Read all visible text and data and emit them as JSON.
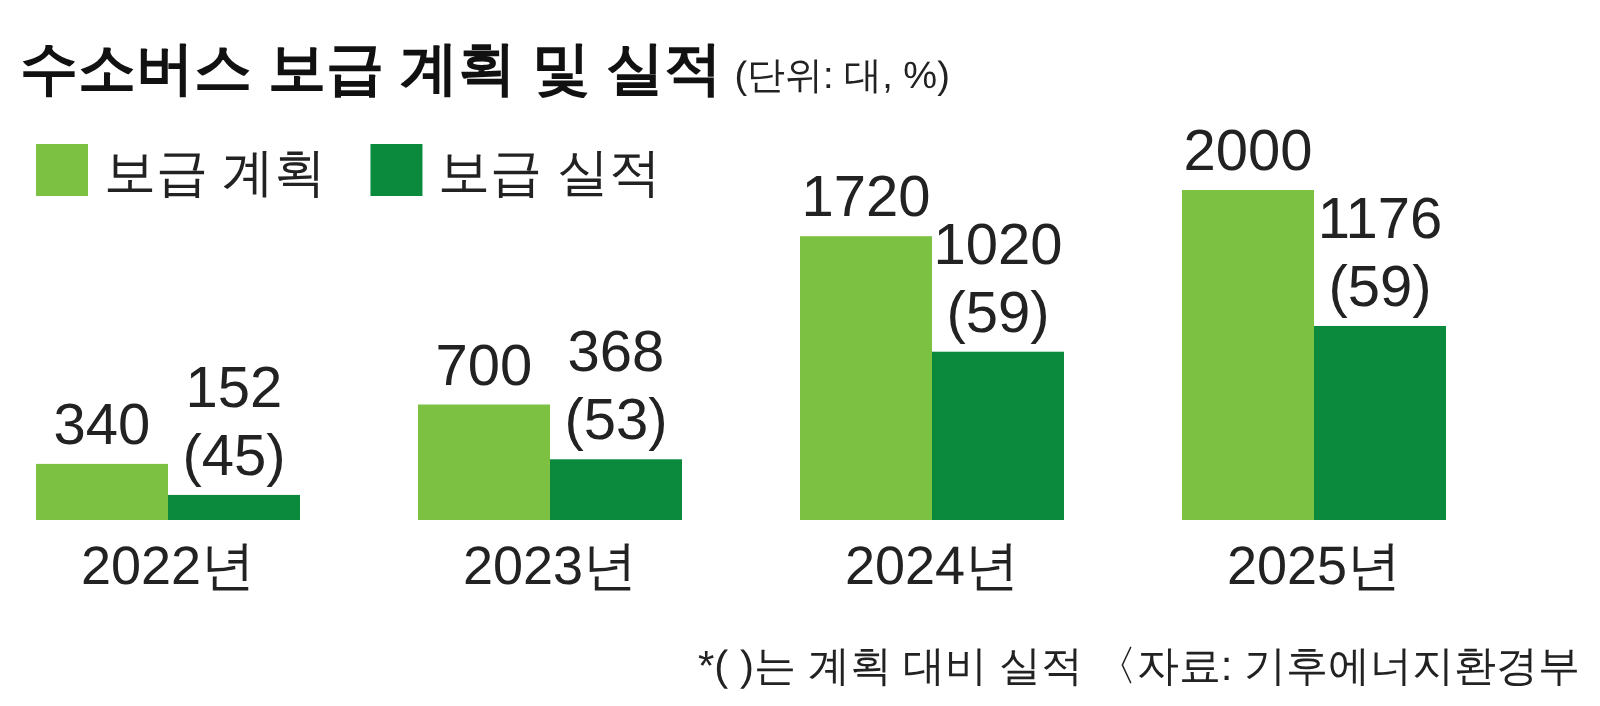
{
  "chart_data": {
    "type": "bar",
    "title": "수소버스 보급 계획 및 실적",
    "subtitle": "(단위: 대, %)",
    "categories": [
      "2022년",
      "2023년",
      "2024년",
      "2025년"
    ],
    "series": [
      {
        "name": "보급 계획",
        "color": "#7dc142",
        "values": [
          340,
          700,
          1720,
          2000
        ],
        "value_labels": [
          "340",
          "700",
          "1720",
          "2000"
        ]
      },
      {
        "name": "보급 실적",
        "color": "#0b8a3e",
        "values": [
          152,
          368,
          1020,
          1176
        ],
        "value_labels": [
          "152 (45)",
          "368 (53)",
          "1020 (59)",
          "1176 (59)"
        ]
      }
    ],
    "legend": "top left",
    "annotations": [
      "*( )는 계획 대비 실적 〈자료: 기후에너지환경부"
    ]
  }
}
